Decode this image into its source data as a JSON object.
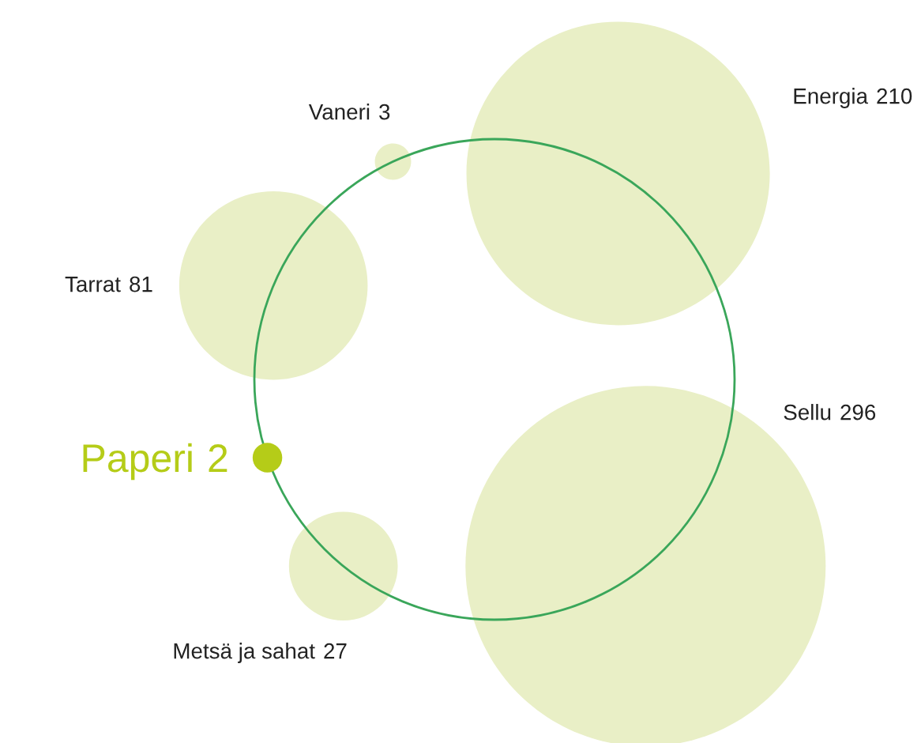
{
  "chart_data": {
    "type": "other",
    "categories": [
      "Vaneri",
      "Energia",
      "Sellu",
      "Metsä ja sahat",
      "Paperi",
      "Tarrat"
    ],
    "values": [
      3,
      210,
      296,
      27,
      2,
      81
    ],
    "colors": [
      "#e9efc6",
      "#e9efc6",
      "#e9efc6",
      "#e9efc6",
      "#b5cc18",
      "#e9efc6"
    ],
    "data_labels": true
  }
}
